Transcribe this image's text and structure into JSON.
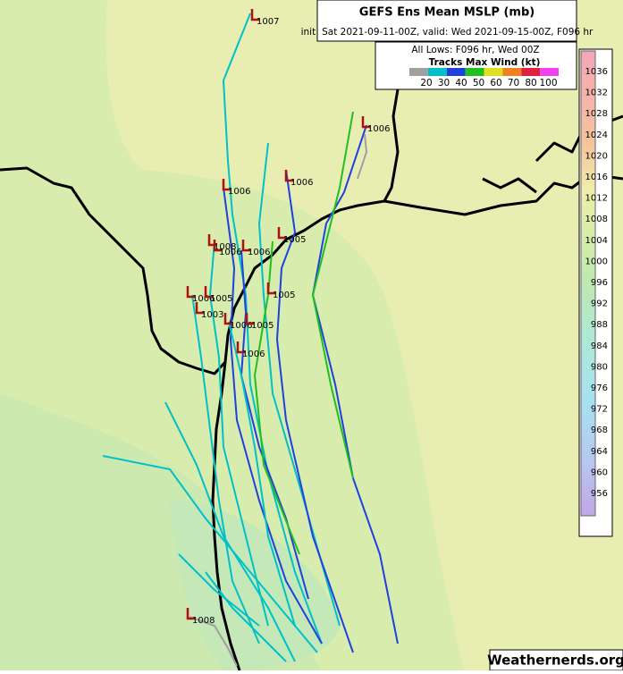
{
  "header": {
    "title": "GEFS Ens Mean MSLP (mb)",
    "subtitle": "init: Sat 2021-09-11-00Z, valid: Wed 2021-09-15-00Z, F096 hr"
  },
  "legend": {
    "lows_label": "All Lows: F096 hr, Wed 00Z",
    "tracks_title": "Tracks Max Wind (kt)",
    "wind_labels": [
      "20",
      "30",
      "40",
      "50",
      "60",
      "70",
      "80",
      "100"
    ],
    "wind_colors": [
      "#a0a0a0",
      "#00c0c8",
      "#2040e0",
      "#20c020",
      "#e0e020",
      "#f08020",
      "#e02040",
      "#f040f0"
    ]
  },
  "colorbar": {
    "labels": [
      "1036",
      "1032",
      "1028",
      "1024",
      "1020",
      "1016",
      "1012",
      "1008",
      "1004",
      "1000",
      "996",
      "992",
      "988",
      "984",
      "980",
      "976",
      "972",
      "968",
      "964",
      "960",
      "956"
    ]
  },
  "lows": [
    "1007",
    "1006",
    "1006",
    "1006",
    "1008",
    "1006",
    "1006",
    "1005",
    "1005",
    "1006",
    "1005",
    "1003",
    "1006",
    "1005",
    "1006",
    "1008"
  ],
  "watermark": "Weathernerds.org"
}
